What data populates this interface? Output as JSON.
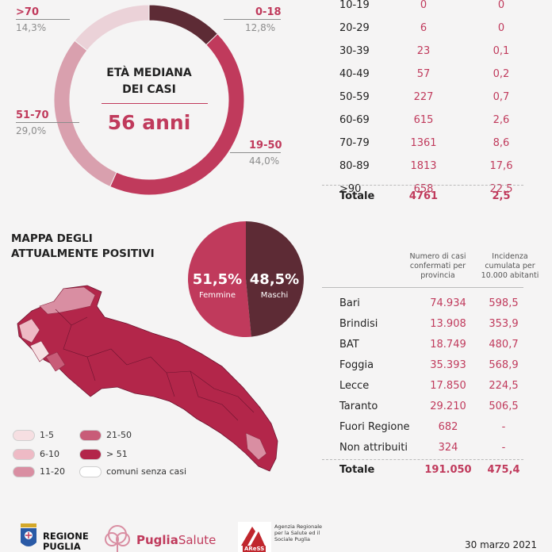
{
  "donut": {
    "center_title": "ETÀ MEDIANA DEI CASI",
    "center_value": "56 anni",
    "colors": [
      "#5d2b35",
      "#c03a5c",
      "#d9a0ae",
      "#ebd2d8"
    ]
  },
  "chart_data": [
    {
      "type": "pie",
      "categories": [
        "0-18",
        "19-50",
        "51-70",
        ">70"
      ],
      "values": [
        12.8,
        44.0,
        29.0,
        14.3
      ],
      "value_labels": [
        "12,8%",
        "44,0%",
        "29,0%",
        "14,3%"
      ]
    },
    {
      "type": "table",
      "rows": [
        {
          "age": "10-19",
          "cases": "0",
          "rate": "0"
        },
        {
          "age": "20-29",
          "cases": "6",
          "rate": "0"
        },
        {
          "age": "30-39",
          "cases": "23",
          "rate": "0,1"
        },
        {
          "age": "40-49",
          "cases": "57",
          "rate": "0,2"
        },
        {
          "age": "50-59",
          "cases": "227",
          "rate": "0,7"
        },
        {
          "age": "60-69",
          "cases": "615",
          "rate": "2,6"
        },
        {
          "age": "70-79",
          "cases": "1361",
          "rate": "8,6"
        },
        {
          "age": "80-89",
          "cases": "1813",
          "rate": "17,6"
        },
        {
          "age": ">90",
          "cases": "658",
          "rate": "22,5"
        }
      ],
      "total": {
        "label": "Totale",
        "cases": "4761",
        "rate": "2,5"
      }
    },
    {
      "type": "pie",
      "categories": [
        "Femmine",
        "Maschi"
      ],
      "values": [
        51.5,
        48.5
      ],
      "value_labels": [
        "51,5%",
        "48,5%"
      ],
      "colors": [
        "#c03a5c",
        "#5d2b35"
      ]
    },
    {
      "type": "table",
      "headers": [
        "Numero di casi confermati per provincia",
        "Incidenza cumulata per 10.000 abitanti"
      ],
      "rows": [
        {
          "name": "Bari",
          "cases": "74.934",
          "rate": "598,5"
        },
        {
          "name": "Brindisi",
          "cases": "13.908",
          "rate": "353,9"
        },
        {
          "name": "BAT",
          "cases": "18.749",
          "rate": "480,7"
        },
        {
          "name": "Foggia",
          "cases": "35.393",
          "rate": "568,9"
        },
        {
          "name": "Lecce",
          "cases": "17.850",
          "rate": "224,5"
        },
        {
          "name": "Taranto",
          "cases": "29.210",
          "rate": "506,5"
        },
        {
          "name": "Fuori Regione",
          "cases": "682",
          "rate": "-"
        },
        {
          "name": "Non attribuiti",
          "cases": "324",
          "rate": "-"
        }
      ],
      "total": {
        "label": "Totale",
        "cases": "191.050",
        "rate": "475,4"
      }
    }
  ],
  "map": {
    "title": "MAPPA DEGLI ATTUALMENTE POSITIVI",
    "legend": [
      {
        "label": "1-5",
        "color": "#f6dfe2"
      },
      {
        "label": "21-50",
        "color": "#c85c78"
      },
      {
        "label": "6-10",
        "color": "#eebac5"
      },
      {
        "label": "> 51",
        "color": "#b3264a"
      },
      {
        "label": "11-20",
        "color": "#d98ea2"
      },
      {
        "label": "comuni senza casi",
        "color": "#ffffff"
      }
    ]
  },
  "footer": {
    "regione": "REGIONE PUGLIA",
    "puglia_salute_1": "Puglia",
    "puglia_salute_2": "Salute",
    "aress_logo": "AReSS",
    "aress_text": "Agenzia Regionale per la Salute ed il Sociale Puglia",
    "date": "30 marzo 2021"
  }
}
